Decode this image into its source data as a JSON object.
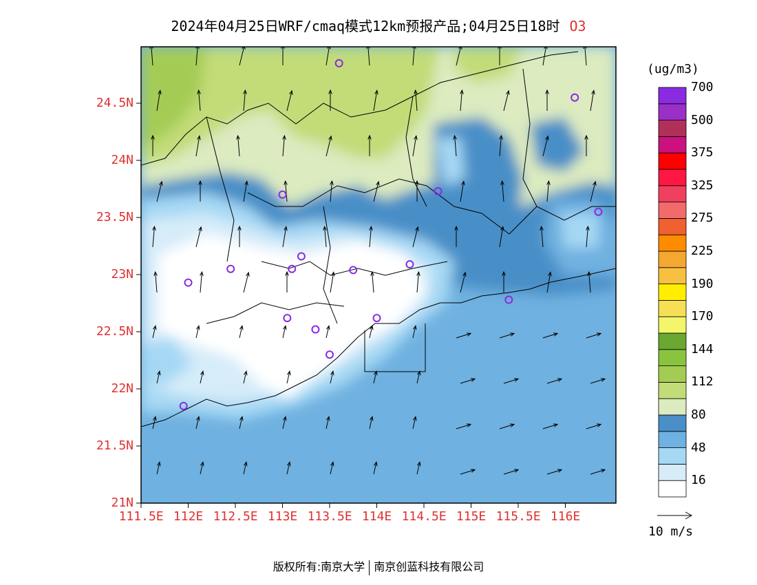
{
  "title": {
    "text": "2024年04月25日WRF/cmaq模式12km预报产品;04月25日18时",
    "species": "O3"
  },
  "colors": {
    "axis_label": "#e03030",
    "land_line": "#000000",
    "sea": "#6fb1e0",
    "marker": "#8a2be2"
  },
  "axes": {
    "lat_labels": [
      "24.5N",
      "24N",
      "23.5N",
      "23N",
      "22.5N",
      "22N",
      "21.5N",
      "21N"
    ],
    "lon_labels": [
      "111.5E",
      "112E",
      "112.5E",
      "113E",
      "113.5E",
      "114E",
      "114.5E",
      "115E",
      "115.5E",
      "116E"
    ]
  },
  "colorbar": {
    "unit": "(ug/m3)",
    "bins": [
      {
        "color": "#ffffff"
      },
      {
        "color": "#d6ecf9"
      },
      {
        "color": "#a6d8f4"
      },
      {
        "color": "#6fb1e0"
      },
      {
        "color": "#4a8fc7"
      },
      {
        "color": "#dcebc0"
      },
      {
        "color": "#c2dc78"
      },
      {
        "color": "#a4cc55"
      },
      {
        "color": "#8ac43f"
      },
      {
        "color": "#6aa832"
      },
      {
        "color": "#f3f66a"
      },
      {
        "color": "#f5df55"
      },
      {
        "color": "#ffee00"
      },
      {
        "color": "#f8c040"
      },
      {
        "color": "#f5a830"
      },
      {
        "color": "#ff8c00"
      },
      {
        "color": "#f06030"
      },
      {
        "color": "#f26a6a"
      },
      {
        "color": "#f04060"
      },
      {
        "color": "#ff1744"
      },
      {
        "color": "#ff0000"
      },
      {
        "color": "#cc1080"
      },
      {
        "color": "#b0305a"
      },
      {
        "color": "#9a30c8"
      },
      {
        "color": "#8a2be2"
      }
    ],
    "labels": [
      "16",
      "48",
      "80",
      "112",
      "144",
      "170",
      "190",
      "225",
      "275",
      "325",
      "375",
      "500",
      "700"
    ]
  },
  "wind_reference": "10 m/s",
  "footer": {
    "left": "版权所有:南京大学",
    "right": "南京创蓝科技有限公司"
  },
  "stations": [
    {
      "lon": 113.6,
      "lat": 24.85
    },
    {
      "lon": 116.1,
      "lat": 24.55
    },
    {
      "lon": 113.0,
      "lat": 23.7
    },
    {
      "lon": 114.65,
      "lat": 23.73
    },
    {
      "lon": 116.35,
      "lat": 23.55
    },
    {
      "lon": 112.0,
      "lat": 22.93
    },
    {
      "lon": 112.45,
      "lat": 23.05
    },
    {
      "lon": 113.1,
      "lat": 23.05
    },
    {
      "lon": 113.2,
      "lat": 23.16
    },
    {
      "lon": 113.75,
      "lat": 23.04
    },
    {
      "lon": 114.35,
      "lat": 23.09
    },
    {
      "lon": 115.4,
      "lat": 22.78
    },
    {
      "lon": 113.05,
      "lat": 22.62
    },
    {
      "lon": 113.35,
      "lat": 22.52
    },
    {
      "lon": 114.0,
      "lat": 22.62
    },
    {
      "lon": 113.5,
      "lat": 22.3
    },
    {
      "lon": 111.95,
      "lat": 21.85
    }
  ]
}
